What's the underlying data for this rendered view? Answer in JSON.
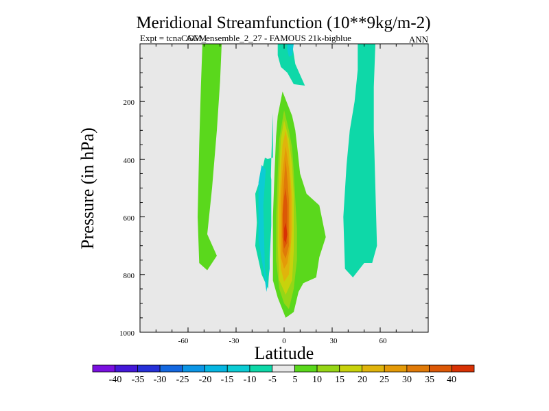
{
  "chart_data": {
    "type": "contour",
    "title": "Meridional Streamfunction (10**9kg/m-2)",
    "subtitle_left": "Expt = tcnaCGM_ensemble_2_27 - FAMOUS 21k-bigblue",
    "subtitle_overlap": "AGM",
    "subtitle_right": "ANN",
    "xlabel": "Latitude",
    "ylabel": "Pressure (in hPa)",
    "xlim": [
      -90,
      90
    ],
    "ylim": [
      1000,
      0
    ],
    "xticks": [
      -60,
      -30,
      0,
      30,
      60
    ],
    "xtick_labels": [
      "-60",
      "-30",
      "0",
      "30",
      "60"
    ],
    "yticks": [
      200,
      400,
      600,
      800,
      1000
    ],
    "ytick_labels": [
      "200",
      "400",
      "600",
      "800",
      "1000"
    ],
    "colorbar": {
      "boundaries": [
        -45,
        -40,
        -35,
        -30,
        -25,
        -20,
        -15,
        -10,
        -5,
        5,
        10,
        15,
        20,
        25,
        30,
        35,
        40,
        45
      ],
      "labels": [
        "-40",
        "-35",
        "-30",
        "-25",
        "-20",
        "-15",
        "-10",
        "-5",
        "5",
        "10",
        "15",
        "20",
        "25",
        "30",
        "35",
        "40"
      ],
      "colors": [
        "#7a10e0",
        "#4418d8",
        "#2630d8",
        "#1468e0",
        "#0c96e6",
        "#06b6e2",
        "#0cccd4",
        "#0ed8a8",
        "#e8e8e8",
        "#5ad81c",
        "#96d616",
        "#c8d20c",
        "#e0b40c",
        "#e49a08",
        "#e07a08",
        "#dc5806",
        "#d83204"
      ]
    },
    "background_color": "#e8e8e8",
    "regions": [
      {
        "name": "upper-left-positive-cell",
        "level": 5,
        "points": [
          [
            -51,
            0
          ],
          [
            -39,
            0
          ],
          [
            -40,
            130
          ],
          [
            -42,
            300
          ],
          [
            -45,
            500
          ],
          [
            -48,
            660
          ],
          [
            -42,
            735
          ],
          [
            -48,
            785
          ],
          [
            -53,
            760
          ],
          [
            -54,
            600
          ],
          [
            -53,
            350
          ],
          [
            -52,
            150
          ]
        ]
      },
      {
        "name": "southern-negative-cell",
        "level": -10,
        "points": [
          [
            -12,
            395
          ],
          [
            -15,
            470
          ],
          [
            -18,
            520
          ],
          [
            -17,
            620
          ],
          [
            -18,
            700
          ],
          [
            -14,
            800
          ],
          [
            -10,
            850
          ],
          [
            -9,
            750
          ],
          [
            -8,
            630
          ],
          [
            -8,
            470
          ],
          [
            -10,
            400
          ]
        ]
      },
      {
        "name": "southern-negative-cell-core",
        "level": -15,
        "points": [
          [
            -14,
            420
          ],
          [
            -16,
            480
          ],
          [
            -16,
            580
          ],
          [
            -16,
            680
          ],
          [
            -13,
            780
          ],
          [
            -11,
            860
          ],
          [
            -9,
            780
          ],
          [
            -9,
            650
          ],
          [
            -10,
            520
          ],
          [
            -11,
            440
          ]
        ]
      },
      {
        "name": "southern-negative-cell-outer",
        "level": -10,
        "points": [
          [
            -7,
            240
          ],
          [
            -7,
            395
          ],
          [
            -11,
            400
          ],
          [
            -13,
            560
          ],
          [
            -12,
            780
          ],
          [
            -10,
            845
          ],
          [
            -9,
            650
          ],
          [
            -8,
            400
          ]
        ]
      },
      {
        "name": "upper-negative-tongue",
        "level": -10,
        "points": [
          [
            -4,
            0
          ],
          [
            5,
            0
          ],
          [
            7,
            70
          ],
          [
            13,
            145
          ],
          [
            6,
            140
          ],
          [
            2,
            100
          ],
          [
            -2,
            80
          ],
          [
            -4,
            40
          ]
        ]
      },
      {
        "name": "upper-negative-tongue-core",
        "level": -15,
        "points": [
          [
            2,
            0
          ],
          [
            6,
            0
          ],
          [
            5,
            40
          ],
          [
            3,
            45
          ],
          [
            2,
            20
          ]
        ]
      },
      {
        "name": "northern-negative-cell",
        "level": -10,
        "points": [
          [
            46,
            0
          ],
          [
            57,
            0
          ],
          [
            56,
            150
          ],
          [
            56,
            300
          ],
          [
            57,
            500
          ],
          [
            58,
            700
          ],
          [
            55,
            760
          ],
          [
            50,
            760
          ],
          [
            43,
            810
          ],
          [
            38,
            780
          ],
          [
            37,
            600
          ],
          [
            39,
            420
          ],
          [
            41,
            300
          ],
          [
            44,
            200
          ],
          [
            46,
            90
          ]
        ]
      },
      {
        "name": "hadley-cell-5",
        "level": 5,
        "points": [
          [
            -1,
            165
          ],
          [
            5,
            250
          ],
          [
            7,
            300
          ],
          [
            8,
            350
          ],
          [
            10,
            450
          ],
          [
            14,
            520
          ],
          [
            22,
            560
          ],
          [
            26,
            670
          ],
          [
            22,
            740
          ],
          [
            20,
            810
          ],
          [
            12,
            830
          ],
          [
            9,
            860
          ],
          [
            6,
            930
          ],
          [
            1,
            950
          ],
          [
            -4,
            880
          ],
          [
            -7,
            820
          ],
          [
            -7,
            700
          ],
          [
            -7,
            600
          ],
          [
            -6,
            450
          ],
          [
            -5,
            320
          ],
          [
            -4,
            250
          ]
        ]
      },
      {
        "name": "hadley-cell-10",
        "level": 10,
        "points": [
          [
            0,
            230
          ],
          [
            3,
            300
          ],
          [
            5,
            360
          ],
          [
            6,
            440
          ],
          [
            7,
            540
          ],
          [
            8,
            640
          ],
          [
            8,
            750
          ],
          [
            6,
            850
          ],
          [
            3,
            920
          ],
          [
            0,
            900
          ],
          [
            -3,
            850
          ],
          [
            -5,
            750
          ],
          [
            -5,
            600
          ],
          [
            -4,
            450
          ],
          [
            -3,
            330
          ]
        ]
      },
      {
        "name": "hadley-cell-15",
        "level": 15,
        "points": [
          [
            0,
            265
          ],
          [
            3,
            330
          ],
          [
            5,
            420
          ],
          [
            6,
            520
          ],
          [
            6,
            620
          ],
          [
            6,
            720
          ],
          [
            5,
            820
          ],
          [
            1,
            870
          ],
          [
            -3,
            820
          ],
          [
            -4,
            700
          ],
          [
            -4,
            580
          ],
          [
            -3,
            450
          ],
          [
            -2,
            330
          ]
        ]
      },
      {
        "name": "hadley-cell-20",
        "level": 20,
        "points": [
          [
            1,
            300
          ],
          [
            3,
            370
          ],
          [
            4,
            460
          ],
          [
            5,
            540
          ],
          [
            5,
            640
          ],
          [
            4,
            720
          ],
          [
            3,
            800
          ],
          [
            0,
            825
          ],
          [
            -2,
            780
          ],
          [
            -3,
            680
          ],
          [
            -3,
            560
          ],
          [
            -2,
            440
          ],
          [
            -1,
            350
          ]
        ]
      },
      {
        "name": "hadley-cell-25",
        "level": 25,
        "points": [
          [
            1,
            355
          ],
          [
            3,
            430
          ],
          [
            4,
            510
          ],
          [
            4,
            600
          ],
          [
            4,
            690
          ],
          [
            2,
            760
          ],
          [
            0,
            780
          ],
          [
            -2,
            740
          ],
          [
            -2,
            640
          ],
          [
            -2,
            540
          ],
          [
            -1,
            440
          ]
        ]
      },
      {
        "name": "hadley-cell-30",
        "level": 30,
        "points": [
          [
            1,
            400
          ],
          [
            2,
            470
          ],
          [
            3,
            540
          ],
          [
            3,
            620
          ],
          [
            3,
            700
          ],
          [
            1,
            745
          ],
          [
            -1,
            720
          ],
          [
            -1,
            640
          ],
          [
            -1,
            560
          ],
          [
            0,
            470
          ]
        ]
      },
      {
        "name": "hadley-cell-35",
        "level": 35,
        "points": [
          [
            1,
            500
          ],
          [
            2,
            560
          ],
          [
            2,
            630
          ],
          [
            2,
            690
          ],
          [
            0,
            710
          ],
          [
            -1,
            670
          ],
          [
            -1,
            590
          ],
          [
            0,
            530
          ]
        ]
      },
      {
        "name": "hadley-cell-40",
        "level": 40,
        "points": [
          [
            1,
            620
          ],
          [
            2,
            660
          ],
          [
            1,
            690
          ],
          [
            0,
            680
          ],
          [
            0,
            640
          ]
        ]
      }
    ]
  }
}
